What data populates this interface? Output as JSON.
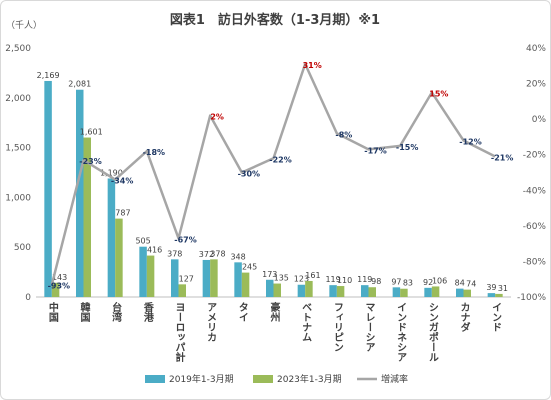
{
  "chart_data": {
    "type": "bar",
    "title": "図表1　訪日外客数（1-3月期）※1",
    "unit_label": "（千人）",
    "categories": [
      "中国",
      "韓国",
      "台湾",
      "香港",
      "ヨーロッパ計",
      "アメリカ",
      "タイ",
      "豪州",
      "ベトナム",
      "フィリピン",
      "マレーシア",
      "インドネシア",
      "シンガポール",
      "カナダ",
      "インド"
    ],
    "series": [
      {
        "name": "2019年1-3月期",
        "type": "bar",
        "axis": "left",
        "color": "#4bacc6",
        "values": [
          2169,
          2081,
          1190,
          505,
          378,
          372,
          348,
          173,
          123,
          119,
          119,
          97,
          92,
          84,
          39
        ]
      },
      {
        "name": "2023年1-3月期",
        "type": "bar",
        "axis": "left",
        "color": "#9bbb59",
        "values": [
          143,
          1601,
          787,
          416,
          127,
          378,
          245,
          135,
          161,
          110,
          98,
          83,
          106,
          74,
          31
        ]
      },
      {
        "name": "増減率",
        "type": "line",
        "axis": "right",
        "color": "#a6a6a6",
        "values": [
          -93,
          -23,
          -34,
          -18,
          -67,
          2,
          -30,
          -22,
          31,
          -8,
          -17,
          -15,
          15,
          -12,
          -21
        ],
        "labels": [
          "-93%",
          "-23%",
          "-34%",
          "-18%",
          "-67%",
          "2%",
          "-30%",
          "-22%",
          "31%",
          "-8%",
          "-17%",
          "-15%",
          "15%",
          "-12%",
          "-21%"
        ]
      }
    ],
    "y_left": {
      "min": 0,
      "max": 2500,
      "ticks": [
        "0",
        "500",
        "1,000",
        "1,500",
        "2,000",
        "2,500"
      ]
    },
    "y_right": {
      "min": -100,
      "max": 40,
      "ticks": [
        "-100%",
        "-80%",
        "-60%",
        "-40%",
        "-20%",
        "0%",
        "20%",
        "40%"
      ]
    },
    "bar_value_labels": {
      "2019": [
        "2,169",
        "2,081",
        "1,190",
        "505",
        "378",
        "372",
        "348",
        "173",
        "123",
        "119",
        "119",
        "97",
        "92",
        "84",
        "39"
      ],
      "2023": [
        "143",
        "1,601",
        "787",
        "416",
        "127",
        "378",
        "245",
        "135",
        "161",
        "110",
        "98",
        "83",
        "106",
        "74",
        "31"
      ]
    },
    "pct_colors": {
      "positive": "#c00000",
      "negative": "#1f3864"
    },
    "legend": [
      "2019年1-3月期",
      "2023年1-3月期",
      "増減率"
    ],
    "legend_position": "bottom",
    "grid": false
  }
}
